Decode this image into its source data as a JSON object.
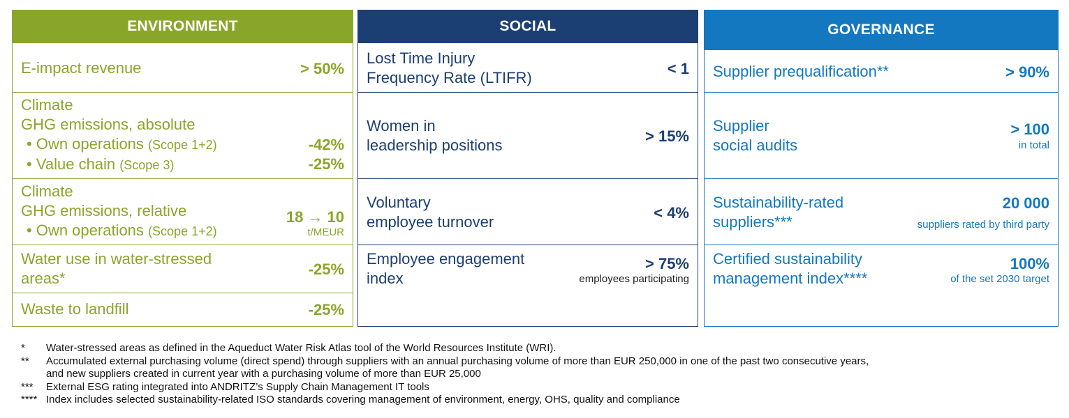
{
  "environment": {
    "title": "ENVIRONMENT",
    "rows": [
      {
        "label": "E-impact revenue",
        "value": "> 50%"
      },
      {
        "title1": "Climate",
        "title2": "GHG emissions, absolute",
        "b1": "Own operations",
        "b1s": "(Scope 1+2)",
        "v1": "-42%",
        "b2": "Value chain",
        "b2s": "(Scope 3)",
        "v2": "-25%"
      },
      {
        "title1": "Climate",
        "title2": "GHG emissions, relative",
        "b1": "Own operations",
        "b1s": "(Scope 1+2)",
        "value": "18 → 10",
        "sub": "t/MEUR"
      },
      {
        "line1": "Water use in water-stressed",
        "line2": "areas*",
        "value": "-25%"
      },
      {
        "label": "Waste to landfill",
        "value": "-25%"
      }
    ]
  },
  "social": {
    "title": "SOCIAL",
    "rows": [
      {
        "line1": "Lost Time Injury",
        "line2": "Frequency Rate (LTIFR)",
        "value": "< 1"
      },
      {
        "line1": "Women in",
        "line2": "leadership positions",
        "value": "> 15%"
      },
      {
        "line1": "Voluntary",
        "line2": "employee turnover",
        "value": "< 4%"
      },
      {
        "line1": "Employee engagement",
        "line2": "index",
        "value": "> 75%",
        "sub": "employees participating"
      }
    ]
  },
  "governance": {
    "title": "GOVERNANCE",
    "rows": [
      {
        "label": "Supplier prequalification**",
        "value": "> 90%"
      },
      {
        "line1": "Supplier",
        "line2": "social audits",
        "value": "> 100",
        "sub": "in total"
      },
      {
        "line1": "Sustainability-rated",
        "line2": "suppliers***",
        "value": "20 000",
        "sub": "suppliers rated by third party"
      },
      {
        "line1": "Certified sustainability",
        "line2": "management index****",
        "value": "100%",
        "sub": "of the set 2030 target"
      }
    ]
  },
  "footnotes": [
    {
      "mark": "*",
      "text": "Water-stressed areas as defined in the Aqueduct Water Risk Atlas tool of the World Resources Institute (WRI)."
    },
    {
      "mark": "**",
      "text": "Accumulated external purchasing volume (direct spend) through suppliers with an annual purchasing volume of more than EUR 250,000 in one of the past two consecutive years,",
      "text2": "and new suppliers created in current year with a purchasing volume of more than EUR 25,000"
    },
    {
      "mark": "***",
      "text": "External ESG rating integrated into ANDRITZ’s Supply Chain Management IT tools"
    },
    {
      "mark": "****",
      "text": "Index includes selected sustainability-related ISO standards covering management of environment, energy, OHS, quality and compliance"
    }
  ],
  "colors": {
    "environment": "#8aa62a",
    "social": "#1c3f73",
    "governance": "#1378c0"
  }
}
